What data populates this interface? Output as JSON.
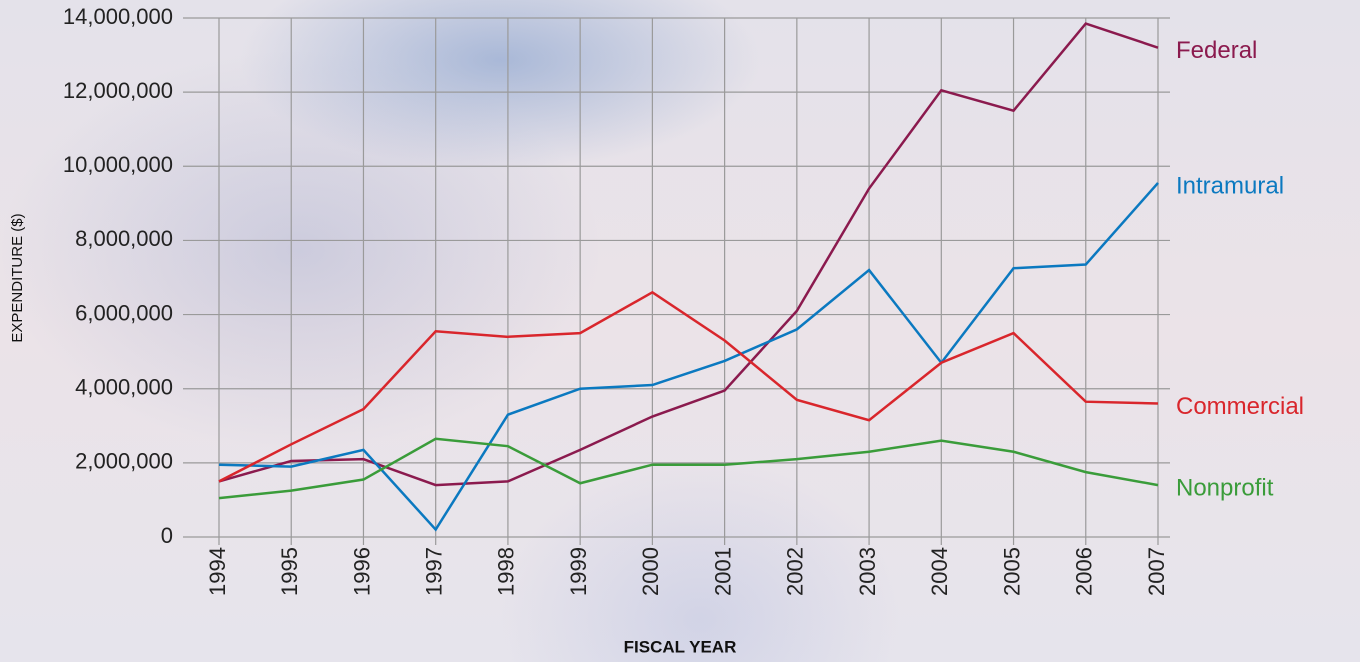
{
  "chart_data": {
    "type": "line",
    "x_label": "FISCAL YEAR",
    "y_label": "EXPENDITURE ($)",
    "categories": [
      "1994",
      "1995",
      "1996",
      "1997",
      "1998",
      "1999",
      "2000",
      "2001",
      "2002",
      "2003",
      "2004",
      "2005",
      "2006",
      "2007"
    ],
    "series": [
      {
        "name": "Federal",
        "color": "#8b1a4e",
        "values": [
          1500000,
          2050000,
          2100000,
          1400000,
          1500000,
          2350000,
          3250000,
          3950000,
          6100000,
          9400000,
          12050000,
          11500000,
          13850000,
          13200000
        ]
      },
      {
        "name": "Intramural",
        "color": "#0b79c0",
        "values": [
          1950000,
          1900000,
          2350000,
          200000,
          3300000,
          4000000,
          4100000,
          4750000,
          5600000,
          7200000,
          4700000,
          7250000,
          7350000,
          9550000
        ]
      },
      {
        "name": "Commercial",
        "color": "#d9262c",
        "values": [
          1500000,
          2500000,
          3450000,
          5550000,
          5400000,
          5500000,
          6600000,
          5300000,
          3700000,
          3150000,
          4700000,
          5500000,
          3650000,
          3600000
        ]
      },
      {
        "name": "Nonprofit",
        "color": "#3a9c3a",
        "values": [
          1050000,
          1250000,
          1550000,
          2650000,
          2450000,
          1450000,
          1950000,
          1950000,
          2100000,
          2300000,
          2600000,
          2300000,
          1750000,
          1400000
        ]
      }
    ],
    "ylim": [
      0,
      14000000
    ],
    "yticks": [
      0,
      {
        "value": 2000000,
        "label": "2,000,000"
      },
      {
        "value": 4000000,
        "label": "4,000,000"
      },
      {
        "value": 6000000,
        "label": "6,000,000"
      },
      {
        "value": 8000000,
        "label": "8,000,000"
      },
      {
        "value": 10000000,
        "label": "10,000,000"
      },
      {
        "value": 12000000,
        "label": "12,000,000"
      },
      {
        "value": 14000000,
        "label": "14,000,000"
      }
    ],
    "grid": true
  }
}
